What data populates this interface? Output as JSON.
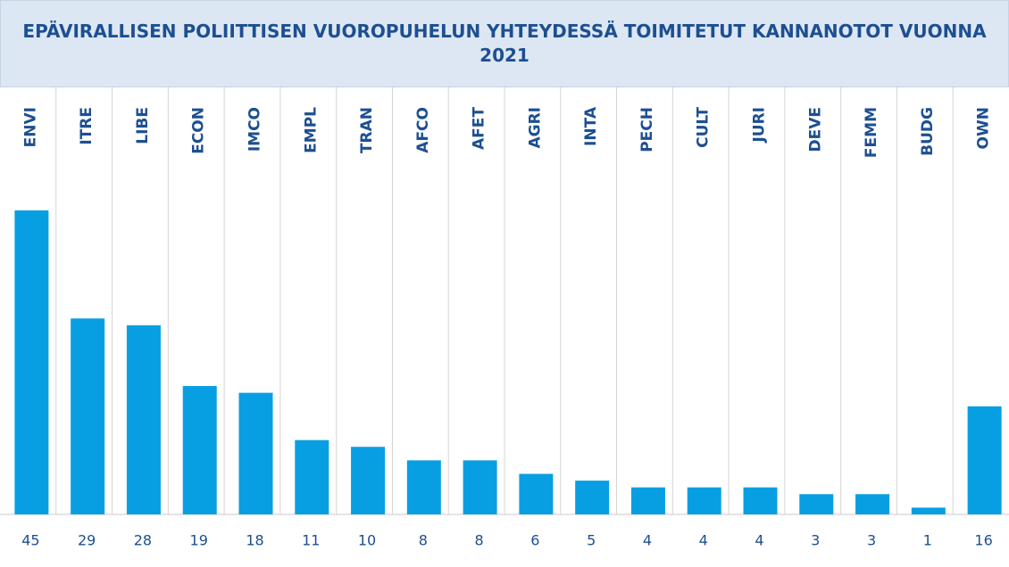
{
  "chart_data": {
    "type": "bar",
    "title": "EPÄVIRALLISEN POLIITTISEN VUOROPUHELUN YHTEYDESSÄ TOIMITETUT KANNANOTOT VUONNA 2021",
    "categories": [
      "ENVI",
      "ITRE",
      "LIBE",
      "ECON",
      "IMCO",
      "EMPL",
      "TRAN",
      "AFCO",
      "AFET",
      "AGRI",
      "INTA",
      "PECH",
      "CULT",
      "JURI",
      "DEVE",
      "FEMM",
      "BUDG",
      "OWN"
    ],
    "values": [
      45,
      29,
      28,
      19,
      18,
      11,
      10,
      8,
      8,
      6,
      5,
      4,
      4,
      4,
      3,
      3,
      1,
      16
    ],
    "color": "#079fe2"
  }
}
